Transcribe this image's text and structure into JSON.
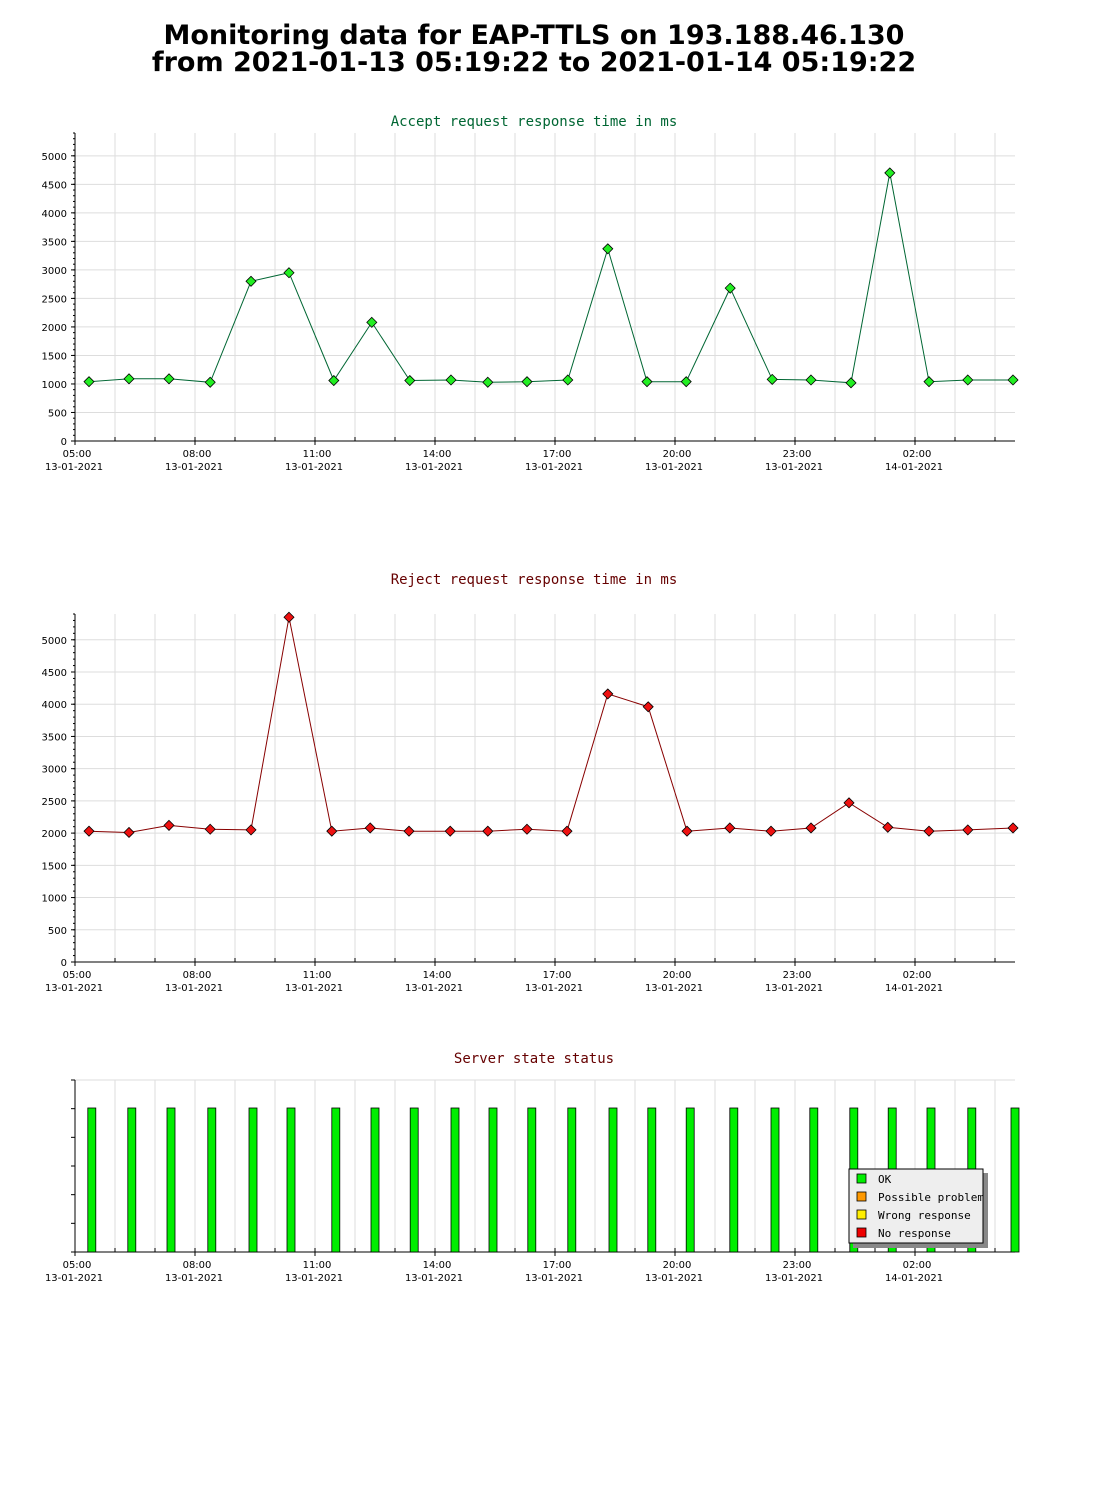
{
  "page": {
    "title_line1": "Monitoring data for EAP-TTLS on 193.188.46.130",
    "title_line2": "from 2021-01-13 05:19:22 to 2021-01-14 05:19:22"
  },
  "colors": {
    "accept_title": "#006633",
    "reject_title": "#660000",
    "status_title": "#660000",
    "accept_line": "#006633",
    "accept_point": "#22ee22",
    "reject_line": "#880000",
    "reject_point": "#ee1111",
    "ok": "#00ee00",
    "possible_problem": "#ff9900",
    "wrong_response": "#ffee00",
    "no_response": "#ee0000"
  },
  "chart_data": [
    {
      "type": "line",
      "title": "Accept request response time in ms",
      "x_unit": "hours since 2021-01-13 05:00",
      "x_range": [
        0,
        23.45
      ],
      "ylim": [
        0,
        5400
      ],
      "yticks": [
        0,
        500,
        1000,
        1500,
        2000,
        2500,
        3000,
        3500,
        4000,
        4500,
        5000
      ],
      "xticks": [
        {
          "time": "05:00",
          "date": "13-01-2021"
        },
        {
          "time": "08:00",
          "date": "13-01-2021"
        },
        {
          "time": "11:00",
          "date": "13-01-2021"
        },
        {
          "time": "14:00",
          "date": "13-01-2021"
        },
        {
          "time": "17:00",
          "date": "13-01-2021"
        },
        {
          "time": "20:00",
          "date": "13-01-2021"
        },
        {
          "time": "23:00",
          "date": "13-01-2021"
        },
        {
          "time": "02:00",
          "date": "14-01-2021"
        }
      ],
      "grid": true,
      "x": [
        0.35,
        1.35,
        2.35,
        3.38,
        4.4,
        5.35,
        6.47,
        7.42,
        8.37,
        9.4,
        10.32,
        11.3,
        12.32,
        13.32,
        14.3,
        15.28,
        16.38,
        17.43,
        18.4,
        19.4,
        20.37,
        21.35,
        22.32,
        23.45
      ],
      "values": [
        1040,
        1090,
        1090,
        1030,
        2800,
        2950,
        1060,
        2080,
        1060,
        1070,
        1030,
        1040,
        1070,
        3370,
        1040,
        1040,
        2680,
        1080,
        1070,
        1020,
        4700,
        1040,
        1070,
        1070
      ]
    },
    {
      "type": "line",
      "title": "Reject request response time in ms",
      "x_unit": "hours since 2021-01-13 05:00",
      "x_range": [
        0,
        23.45
      ],
      "ylim": [
        0,
        5400
      ],
      "yticks": [
        0,
        500,
        1000,
        1500,
        2000,
        2500,
        3000,
        3500,
        4000,
        4500,
        5000
      ],
      "xticks": [
        {
          "time": "05:00",
          "date": "13-01-2021"
        },
        {
          "time": "08:00",
          "date": "13-01-2021"
        },
        {
          "time": "11:00",
          "date": "13-01-2021"
        },
        {
          "time": "14:00",
          "date": "13-01-2021"
        },
        {
          "time": "17:00",
          "date": "13-01-2021"
        },
        {
          "time": "20:00",
          "date": "13-01-2021"
        },
        {
          "time": "23:00",
          "date": "13-01-2021"
        },
        {
          "time": "02:00",
          "date": "14-01-2021"
        }
      ],
      "grid": true,
      "x": [
        0.35,
        1.35,
        2.35,
        3.38,
        4.4,
        5.35,
        6.42,
        7.38,
        8.35,
        9.38,
        10.32,
        11.3,
        12.3,
        13.32,
        14.33,
        15.3,
        16.37,
        17.4,
        18.4,
        19.35,
        20.32,
        21.35,
        22.32,
        23.45
      ],
      "values": [
        2030,
        2010,
        2120,
        2060,
        2050,
        5350,
        2030,
        2080,
        2030,
        2030,
        2030,
        2060,
        2030,
        4160,
        3960,
        2030,
        2080,
        2030,
        2080,
        2470,
        2090,
        2030,
        2050,
        2080
      ]
    },
    {
      "type": "bar",
      "title": "Server state status",
      "x_unit": "hours since 2021-01-13 05:00",
      "x_range": [
        0,
        23.45
      ],
      "xticks": [
        {
          "time": "05:00",
          "date": "13-01-2021"
        },
        {
          "time": "08:00",
          "date": "13-01-2021"
        },
        {
          "time": "11:00",
          "date": "13-01-2021"
        },
        {
          "time": "14:00",
          "date": "13-01-2021"
        },
        {
          "time": "17:00",
          "date": "13-01-2021"
        },
        {
          "time": "20:00",
          "date": "13-01-2021"
        },
        {
          "time": "23:00",
          "date": "13-01-2021"
        },
        {
          "time": "02:00",
          "date": "14-01-2021"
        }
      ],
      "grid": true,
      "x": [
        0.42,
        1.42,
        2.4,
        3.42,
        4.45,
        5.4,
        6.52,
        7.5,
        8.48,
        9.5,
        10.45,
        11.42,
        12.42,
        13.45,
        14.42,
        15.38,
        16.47,
        17.5,
        18.47,
        19.47,
        20.43,
        21.4,
        22.42,
        23.5
      ],
      "status": [
        "OK",
        "OK",
        "OK",
        "OK",
        "OK",
        "OK",
        "OK",
        "OK",
        "OK",
        "OK",
        "OK",
        "OK",
        "OK",
        "OK",
        "OK",
        "OK",
        "OK",
        "OK",
        "OK",
        "OK",
        "OK",
        "OK",
        "OK",
        "OK"
      ],
      "legend": {
        "placement": "bottom-right",
        "entries": [
          {
            "label": "OK",
            "color_key": "ok"
          },
          {
            "label": "Possible problem",
            "color_key": "possible_problem"
          },
          {
            "label": "Wrong response",
            "color_key": "wrong_response"
          },
          {
            "label": "No response",
            "color_key": "no_response"
          }
        ]
      }
    }
  ]
}
